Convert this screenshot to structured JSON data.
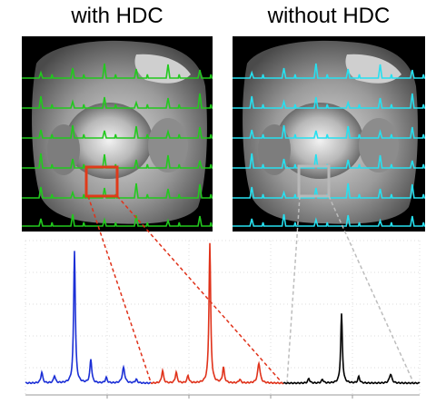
{
  "panels": {
    "left": {
      "title": "with HDC",
      "grid_color": "#22c91e",
      "roi_color": "#e03a1a"
    },
    "right": {
      "title": "without HDC",
      "grid_color": "#27e0f0",
      "roi_color": "#b8b8b8"
    }
  },
  "spectrum": {
    "segments": [
      {
        "name": "with-hdc-spectrum",
        "color": "#1b2fd6"
      },
      {
        "name": "red-roi-spectrum",
        "color": "#e0321a"
      },
      {
        "name": "without-hdc-spectrum",
        "color": "#000000"
      }
    ],
    "connector_colors": {
      "red": "#e0321a",
      "gray": "#bdbdbd"
    },
    "grid_color": "#dcdcdc"
  }
}
